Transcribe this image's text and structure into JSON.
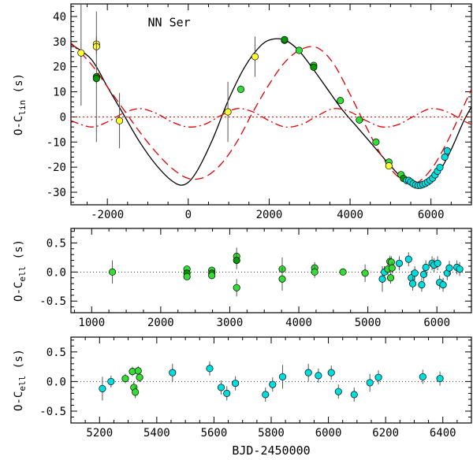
{
  "chart_data": [
    {
      "type": "line",
      "title": "",
      "annotation": "NN Ser",
      "ylabel": "O-C_lin (s)",
      "ylabel_main": "O-C",
      "ylabel_sub": "lin",
      "ylabel_unit": "(s)",
      "xlabel": "",
      "xlim": [
        -2900,
        7000
      ],
      "ylim": [
        -35,
        45
      ],
      "xticks": [
        -2000,
        0,
        2000,
        4000,
        6000
      ],
      "yticks": [
        -30,
        -20,
        -10,
        0,
        10,
        20,
        30,
        40
      ],
      "models": [
        {
          "name": "full LTT fit",
          "style": "solid",
          "color": "#000000",
          "x": [
            -2900,
            -2400,
            -2000,
            -1600,
            -1200,
            -800,
            -400,
            -100,
            200,
            600,
            1000,
            1400,
            1800,
            2100,
            2400,
            2700,
            3000,
            3400,
            3800,
            4200,
            4600,
            5000,
            5300,
            5600,
            5900,
            6200,
            6500,
            6800,
            7000
          ],
          "y": [
            29,
            23,
            12,
            1,
            -10,
            -19,
            -25.5,
            -27,
            -22,
            -9,
            7,
            20,
            28.5,
            31,
            30.5,
            27,
            21,
            12,
            3,
            -4.5,
            -12,
            -19.5,
            -24.5,
            -27.5,
            -27,
            -22,
            -13,
            -2,
            4
          ]
        },
        {
          "name": "outer planet orbit",
          "style": "dashed",
          "color": "#e00000",
          "x": [
            -2900,
            -2400,
            -2000,
            -1600,
            -1200,
            -800,
            -400,
            0,
            400,
            800,
            1200,
            1600,
            2000,
            2400,
            2800,
            3200,
            3600,
            4000,
            4400,
            4800,
            5200,
            5600,
            6000,
            6400,
            6800,
            7000
          ],
          "y": [
            29.5,
            21,
            12,
            3,
            -6,
            -14,
            -20.5,
            -24.5,
            -24,
            -19,
            -10,
            2,
            13,
            22,
            27,
            27.5,
            21,
            9,
            -4,
            -16,
            -24,
            -26.5,
            -21,
            -10,
            4,
            11
          ]
        },
        {
          "name": "inner planet orbit",
          "style": "dashdot",
          "color": "#e00000",
          "x": [
            -2900,
            -2400,
            -2000,
            -1600,
            -1200,
            -800,
            -400,
            0,
            400,
            800,
            1200,
            1600,
            2000,
            2400,
            2800,
            3200,
            3600,
            4000,
            4400,
            4800,
            5200,
            5600,
            6000,
            6400,
            6800,
            7000
          ],
          "y": [
            -1.5,
            -4,
            -2,
            1.5,
            3.3,
            1.5,
            -2,
            -4,
            -3,
            0.5,
            3.3,
            2,
            -1.5,
            -4,
            -3,
            0.5,
            3.3,
            2,
            -1.5,
            -4,
            -3,
            0.5,
            3.3,
            2,
            -1.5,
            -3
          ]
        },
        {
          "name": "zero line",
          "style": "dotted",
          "color": "#e00000",
          "x": [
            -2900,
            7000
          ],
          "y": [
            0,
            0
          ]
        }
      ],
      "points": [
        {
          "x": -2650,
          "y": 25.5,
          "err": 21,
          "color": "#ffff33"
        },
        {
          "x": -2270,
          "y": 29,
          "err": 3,
          "color": "#ffff33"
        },
        {
          "x": -2270,
          "y": 28,
          "err": 3,
          "color": "#ffff33"
        },
        {
          "x": -2270,
          "y": 16,
          "err": 26,
          "color": "#009900"
        },
        {
          "x": -2270,
          "y": 15.3,
          "err": 2,
          "color": "#009900"
        },
        {
          "x": -1700,
          "y": -1.5,
          "err": 11,
          "color": "#ffff33"
        },
        {
          "x": 980,
          "y": 2,
          "err": 12,
          "color": "#ffff33"
        },
        {
          "x": 1300,
          "y": 11,
          "err": 1.5,
          "color": "#33dd33"
        },
        {
          "x": 1650,
          "y": 24,
          "err": 8,
          "color": "#ffff33"
        },
        {
          "x": 2380,
          "y": 30.5,
          "err": 1.2,
          "color": "#33dd33"
        },
        {
          "x": 2380,
          "y": 30.8,
          "err": 0.8,
          "color": "#009900"
        },
        {
          "x": 2740,
          "y": 26.5,
          "err": 1.2,
          "color": "#33dd33"
        },
        {
          "x": 3100,
          "y": 20.5,
          "err": 1.2,
          "color": "#33dd33"
        },
        {
          "x": 3100,
          "y": 19.8,
          "err": 1.2,
          "color": "#009900"
        },
        {
          "x": 3760,
          "y": 6.5,
          "err": 1.2,
          "color": "#33dd33"
        },
        {
          "x": 4230,
          "y": -1.2,
          "err": 1.2,
          "color": "#33dd33"
        },
        {
          "x": 4640,
          "y": -10,
          "err": 1.2,
          "color": "#33dd33"
        },
        {
          "x": 4960,
          "y": -18,
          "err": 1.2,
          "color": "#33dd33"
        },
        {
          "x": 4960,
          "y": -19.5,
          "err": 1.2,
          "color": "#ffff33"
        },
        {
          "x": 5260,
          "y": -23,
          "err": 1.2,
          "color": "#33dd33"
        },
        {
          "x": 5320,
          "y": -24.5,
          "err": 1.2,
          "color": "#009900"
        },
        {
          "x": 5400,
          "y": -25.3,
          "err": 1.2,
          "color": "#00dddd"
        },
        {
          "x": 5450,
          "y": -25.3,
          "err": 1.2,
          "color": "#00dddd"
        },
        {
          "x": 5500,
          "y": -25.9,
          "err": 1.2,
          "color": "#00dddd"
        },
        {
          "x": 5560,
          "y": -26.6,
          "err": 1.2,
          "color": "#00dddd"
        },
        {
          "x": 5620,
          "y": -27.1,
          "err": 1.2,
          "color": "#00dddd"
        },
        {
          "x": 5680,
          "y": -27.3,
          "err": 1.2,
          "color": "#00dddd"
        },
        {
          "x": 5740,
          "y": -27.2,
          "err": 1.2,
          "color": "#00dddd"
        },
        {
          "x": 5800,
          "y": -26.9,
          "err": 1.2,
          "color": "#00dddd"
        },
        {
          "x": 5860,
          "y": -26.5,
          "err": 1.2,
          "color": "#00dddd"
        },
        {
          "x": 5920,
          "y": -25.9,
          "err": 1.2,
          "color": "#00dddd"
        },
        {
          "x": 5980,
          "y": -25.2,
          "err": 1.2,
          "color": "#00dddd"
        },
        {
          "x": 6040,
          "y": -24.4,
          "err": 1.2,
          "color": "#00dddd"
        },
        {
          "x": 6100,
          "y": -23.1,
          "err": 1.2,
          "color": "#00dddd"
        },
        {
          "x": 6160,
          "y": -21.6,
          "err": 1.2,
          "color": "#00dddd"
        },
        {
          "x": 6220,
          "y": -20.1,
          "err": 1.2,
          "color": "#00dddd"
        },
        {
          "x": 6340,
          "y": -16,
          "err": 1.5,
          "color": "#00dddd"
        },
        {
          "x": 6400,
          "y": -13.5,
          "err": 1.5,
          "color": "#00dddd"
        }
      ]
    },
    {
      "type": "scatter",
      "title": "",
      "ylabel": "O-C_ell (s)",
      "ylabel_main": "O-C",
      "ylabel_sub": "ell",
      "ylabel_unit": "(s)",
      "xlabel": "",
      "xlim": [
        700,
        6500
      ],
      "ylim": [
        -0.7,
        0.75
      ],
      "xticks": [
        1000,
        2000,
        3000,
        4000,
        5000,
        6000
      ],
      "yticks": [
        -0.5,
        0.0,
        0.5
      ],
      "yticklabels": [
        "-0.5",
        "0.0",
        "0.5"
      ],
      "points": [
        {
          "x": 1300,
          "y": 0.0,
          "err": 0.2,
          "color": "#33dd33"
        },
        {
          "x": 2380,
          "y": 0.05,
          "err": 0.06,
          "color": "#33dd33"
        },
        {
          "x": 2380,
          "y": -0.02,
          "err": 0.06,
          "color": "#009900"
        },
        {
          "x": 2380,
          "y": -0.08,
          "err": 0.06,
          "color": "#33dd33"
        },
        {
          "x": 2740,
          "y": 0.03,
          "err": 0.06,
          "color": "#33dd33"
        },
        {
          "x": 2740,
          "y": -0.02,
          "err": 0.06,
          "color": "#009900"
        },
        {
          "x": 2740,
          "y": -0.06,
          "err": 0.06,
          "color": "#33dd33"
        },
        {
          "x": 3100,
          "y": 0.27,
          "err": 0.15,
          "color": "#33dd33"
        },
        {
          "x": 3100,
          "y": 0.2,
          "err": 0.15,
          "color": "#009900"
        },
        {
          "x": 3100,
          "y": -0.27,
          "err": 0.15,
          "color": "#33dd33"
        },
        {
          "x": 3760,
          "y": 0.05,
          "err": 0.2,
          "color": "#33dd33"
        },
        {
          "x": 3760,
          "y": -0.12,
          "err": 0.2,
          "color": "#33dd33"
        },
        {
          "x": 4230,
          "y": 0.07,
          "err": 0.1,
          "color": "#33dd33"
        },
        {
          "x": 4230,
          "y": 0.0,
          "err": 0.1,
          "color": "#33dd33"
        },
        {
          "x": 4640,
          "y": 0.0,
          "err": 0.05,
          "color": "#33dd33"
        },
        {
          "x": 4960,
          "y": -0.02,
          "err": 0.15,
          "color": "#33dd33"
        },
        {
          "x": 5210,
          "y": -0.12,
          "err": 0.22,
          "color": "#00dddd"
        },
        {
          "x": 5240,
          "y": 0.0,
          "err": 0.1,
          "color": "#00dddd"
        },
        {
          "x": 5290,
          "y": 0.05,
          "err": 0.1,
          "color": "#33dd33"
        },
        {
          "x": 5320,
          "y": 0.18,
          "err": 0.1,
          "color": "#33dd33"
        },
        {
          "x": 5330,
          "y": -0.1,
          "err": 0.1,
          "color": "#33dd33"
        },
        {
          "x": 5340,
          "y": 0.17,
          "err": 0.1,
          "color": "#33dd33"
        },
        {
          "x": 5350,
          "y": 0.07,
          "err": 0.1,
          "color": "#33dd33"
        },
        {
          "x": 5455,
          "y": 0.15,
          "err": 0.12,
          "color": "#00dddd"
        },
        {
          "x": 5590,
          "y": 0.22,
          "err": 0.12,
          "color": "#00dddd"
        },
        {
          "x": 5630,
          "y": -0.1,
          "err": 0.12,
          "color": "#00dddd"
        },
        {
          "x": 5650,
          "y": -0.2,
          "err": 0.12,
          "color": "#00dddd"
        },
        {
          "x": 5680,
          "y": -0.02,
          "err": 0.12,
          "color": "#00dddd"
        },
        {
          "x": 5780,
          "y": -0.22,
          "err": 0.12,
          "color": "#00dddd"
        },
        {
          "x": 5810,
          "y": -0.04,
          "err": 0.12,
          "color": "#00dddd"
        },
        {
          "x": 5840,
          "y": 0.08,
          "err": 0.12,
          "color": "#00dddd"
        },
        {
          "x": 5930,
          "y": 0.15,
          "err": 0.12,
          "color": "#00dddd"
        },
        {
          "x": 5960,
          "y": 0.12,
          "err": 0.12,
          "color": "#00dddd"
        },
        {
          "x": 6010,
          "y": 0.15,
          "err": 0.12,
          "color": "#00dddd"
        },
        {
          "x": 6040,
          "y": -0.18,
          "err": 0.12,
          "color": "#00dddd"
        },
        {
          "x": 6090,
          "y": -0.22,
          "err": 0.12,
          "color": "#00dddd"
        },
        {
          "x": 6150,
          "y": -0.02,
          "err": 0.12,
          "color": "#00dddd"
        },
        {
          "x": 6180,
          "y": 0.07,
          "err": 0.12,
          "color": "#00dddd"
        },
        {
          "x": 6290,
          "y": 0.08,
          "err": 0.12,
          "color": "#00dddd"
        },
        {
          "x": 6330,
          "y": 0.05,
          "err": 0.12,
          "color": "#00dddd"
        }
      ]
    },
    {
      "type": "scatter",
      "title": "",
      "ylabel": "O-C_ell (s)",
      "ylabel_main": "O-C",
      "ylabel_sub": "ell",
      "ylabel_unit": "(s)",
      "xlabel": "BJD-2450000",
      "xlim": [
        5100,
        6500
      ],
      "ylim": [
        -0.7,
        0.75
      ],
      "xticks": [
        5200,
        5400,
        5600,
        5800,
        6000,
        6200,
        6400
      ],
      "yticks": [
        -0.5,
        0.0,
        0.5
      ],
      "yticklabels": [
        "-0.5",
        "0.0",
        "0.5"
      ],
      "points": [
        {
          "x": 5210,
          "y": -0.12,
          "err": 0.2,
          "color": "#00dddd"
        },
        {
          "x": 5240,
          "y": 0.0,
          "err": 0.1,
          "color": "#00dddd"
        },
        {
          "x": 5290,
          "y": 0.05,
          "err": 0.08,
          "color": "#33dd33"
        },
        {
          "x": 5315,
          "y": 0.17,
          "err": 0.08,
          "color": "#33dd33"
        },
        {
          "x": 5320,
          "y": -0.1,
          "err": 0.1,
          "color": "#33dd33"
        },
        {
          "x": 5325,
          "y": -0.18,
          "err": 0.1,
          "color": "#33dd33"
        },
        {
          "x": 5335,
          "y": 0.18,
          "err": 0.08,
          "color": "#33dd33"
        },
        {
          "x": 5340,
          "y": 0.07,
          "err": 0.08,
          "color": "#33dd33"
        },
        {
          "x": 5455,
          "y": 0.15,
          "err": 0.15,
          "color": "#00dddd"
        },
        {
          "x": 5585,
          "y": 0.22,
          "err": 0.12,
          "color": "#00dddd"
        },
        {
          "x": 5625,
          "y": -0.1,
          "err": 0.12,
          "color": "#00dddd"
        },
        {
          "x": 5645,
          "y": -0.2,
          "err": 0.12,
          "color": "#00dddd"
        },
        {
          "x": 5675,
          "y": -0.03,
          "err": 0.12,
          "color": "#00dddd"
        },
        {
          "x": 5780,
          "y": -0.22,
          "err": 0.12,
          "color": "#00dddd"
        },
        {
          "x": 5805,
          "y": -0.05,
          "err": 0.12,
          "color": "#00dddd"
        },
        {
          "x": 5840,
          "y": 0.08,
          "err": 0.2,
          "color": "#00dddd"
        },
        {
          "x": 5930,
          "y": 0.15,
          "err": 0.15,
          "color": "#00dddd"
        },
        {
          "x": 5965,
          "y": 0.1,
          "err": 0.12,
          "color": "#00dddd"
        },
        {
          "x": 6010,
          "y": 0.15,
          "err": 0.12,
          "color": "#00dddd"
        },
        {
          "x": 6035,
          "y": -0.17,
          "err": 0.12,
          "color": "#00dddd"
        },
        {
          "x": 6090,
          "y": -0.22,
          "err": 0.12,
          "color": "#00dddd"
        },
        {
          "x": 6145,
          "y": -0.02,
          "err": 0.15,
          "color": "#00dddd"
        },
        {
          "x": 6175,
          "y": 0.07,
          "err": 0.12,
          "color": "#00dddd"
        },
        {
          "x": 6330,
          "y": 0.08,
          "err": 0.12,
          "color": "#00dddd"
        },
        {
          "x": 6390,
          "y": 0.05,
          "err": 0.12,
          "color": "#00dddd"
        }
      ]
    }
  ]
}
